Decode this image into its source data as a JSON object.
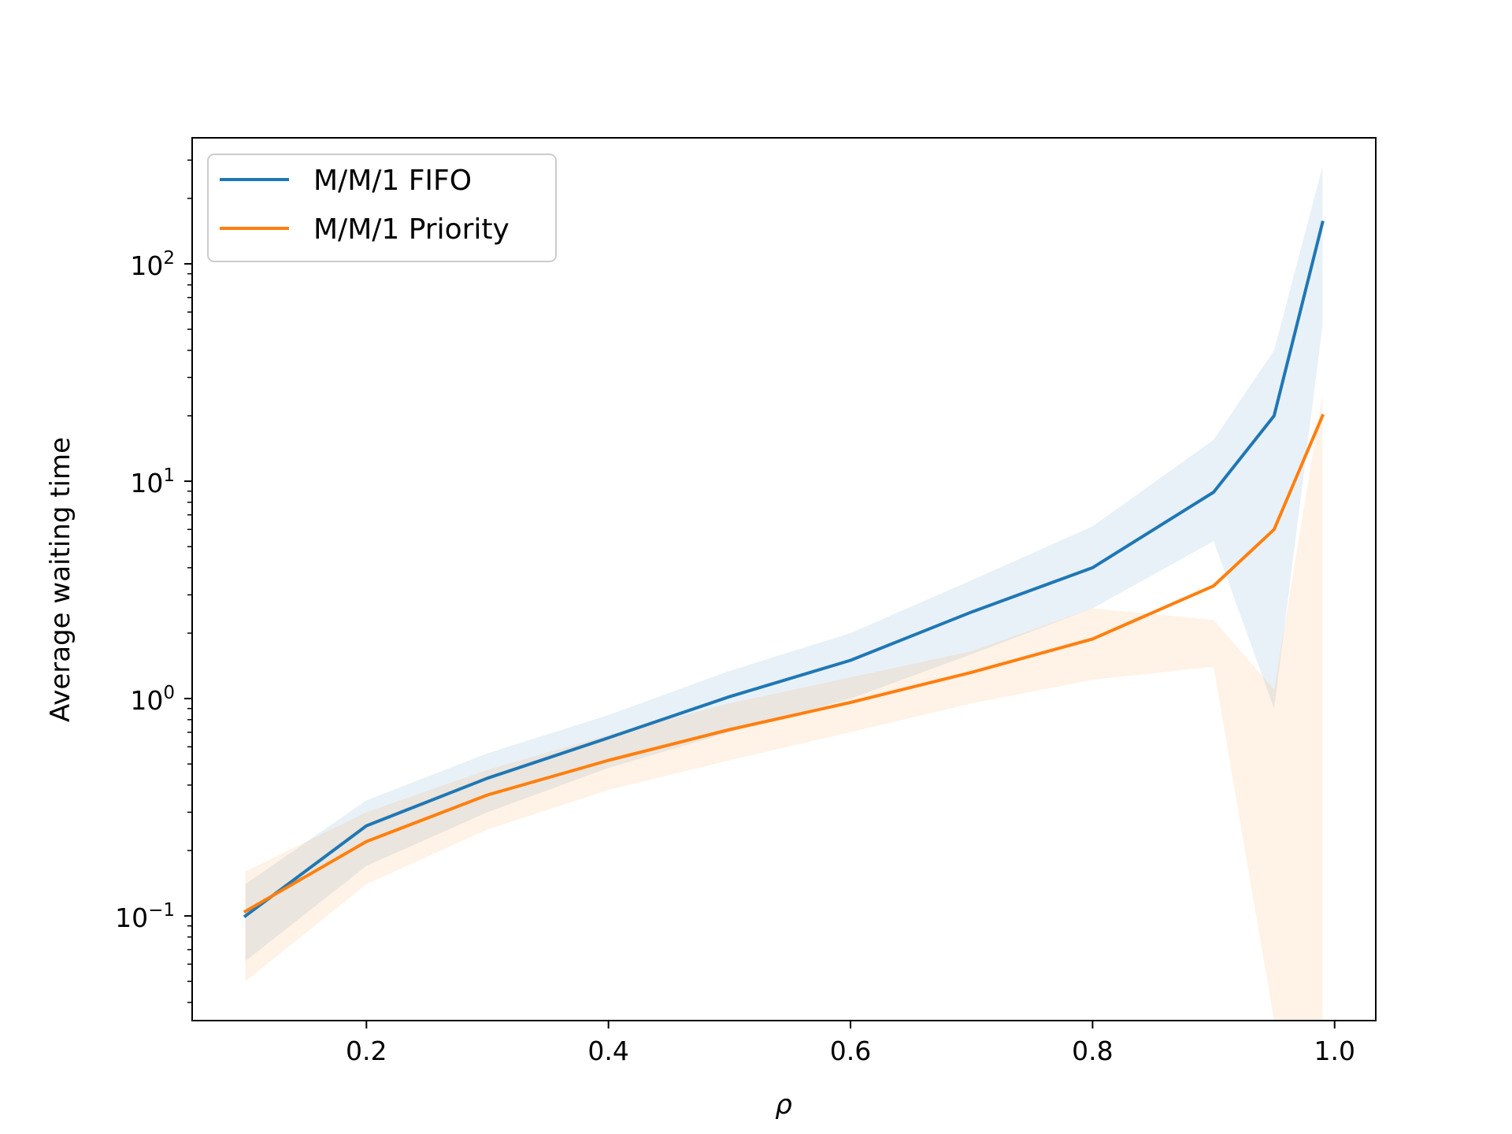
{
  "chart_data": {
    "type": "line",
    "xlabel": "ρ",
    "ylabel": "Average waiting time",
    "y_scale": "log",
    "xlim": [
      0.056,
      1.034
    ],
    "ylim": [
      0.033,
      380
    ],
    "x_ticks": [
      {
        "value": 0.2,
        "label": "0.2"
      },
      {
        "value": 0.4,
        "label": "0.4"
      },
      {
        "value": 0.6,
        "label": "0.6"
      },
      {
        "value": 0.8,
        "label": "0.8"
      },
      {
        "value": 1.0,
        "label": "1.0"
      }
    ],
    "y_ticks": [
      {
        "value": 0.1,
        "base": "10",
        "exp": "−1"
      },
      {
        "value": 1,
        "base": "10",
        "exp": "0"
      },
      {
        "value": 10,
        "base": "10",
        "exp": "1"
      },
      {
        "value": 100,
        "base": "10",
        "exp": "2"
      }
    ],
    "grid": false,
    "legend_position": "top-left",
    "x": [
      0.1,
      0.2,
      0.3,
      0.4,
      0.5,
      0.6,
      0.7,
      0.8,
      0.9,
      0.95,
      0.99
    ],
    "series": [
      {
        "name": "M/M/1 FIFO",
        "color": "#1f77b4",
        "values": [
          0.1,
          0.26,
          0.43,
          0.66,
          1.02,
          1.5,
          2.5,
          4.0,
          8.9,
          20,
          155
        ],
        "band_upper": [
          0.14,
          0.34,
          0.56,
          0.84,
          1.34,
          2.0,
          3.5,
          6.2,
          15.5,
          40,
          280
        ],
        "band_lower": [
          0.062,
          0.17,
          0.3,
          0.48,
          0.7,
          1.0,
          1.6,
          2.6,
          5.3,
          0.9,
          52
        ]
      },
      {
        "name": "M/M/1 Priority",
        "color": "#ff7f0e",
        "values": [
          0.105,
          0.22,
          0.36,
          0.52,
          0.72,
          0.96,
          1.32,
          1.88,
          3.3,
          6.0,
          20
        ],
        "band_upper": [
          0.16,
          0.3,
          0.47,
          0.68,
          0.95,
          1.25,
          1.65,
          2.6,
          2.3,
          1.1,
          25
        ],
        "band_lower": [
          0.05,
          0.14,
          0.25,
          0.38,
          0.52,
          0.7,
          0.95,
          1.22,
          1.4,
          0.033,
          0.033
        ]
      }
    ],
    "band_opacity": 0.1
  }
}
